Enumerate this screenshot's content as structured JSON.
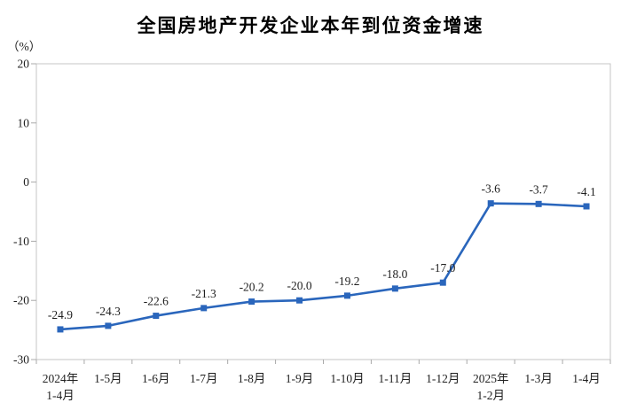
{
  "chart_data": {
    "type": "line",
    "title": "全国房地产开发企业本年到位资金增速",
    "unit_label": "（%）",
    "categories": [
      [
        "2024年",
        "1-4月"
      ],
      [
        "1-5月"
      ],
      [
        "1-6月"
      ],
      [
        "1-7月"
      ],
      [
        "1-8月"
      ],
      [
        "1-9月"
      ],
      [
        "1-10月"
      ],
      [
        "1-11月"
      ],
      [
        "1-12月"
      ],
      [
        "2025年",
        "1-2月"
      ],
      [
        "1-3月"
      ],
      [
        "1-4月"
      ]
    ],
    "values": [
      -24.9,
      -24.3,
      -22.6,
      -21.3,
      -20.2,
      -20.0,
      -19.2,
      -18.0,
      -17.0,
      -3.6,
      -3.7,
      -4.1
    ],
    "value_labels": [
      "-24.9",
      "-24.3",
      "-22.6",
      "-21.3",
      "-20.2",
      "-20.0",
      "-19.2",
      "-18.0",
      "-17.0",
      "-3.6",
      "-3.7",
      "-4.1"
    ],
    "ylim": [
      -30,
      20
    ],
    "yticks": [
      20,
      10,
      0,
      -10,
      -20,
      -30
    ],
    "xlabel": "",
    "ylabel": "（%）",
    "grid": false,
    "legend": null,
    "marker_shape": "square",
    "colors": {
      "line": "#2A66BC",
      "marker": "#2A66BC",
      "axis_border": "#C6C6C6",
      "tick": "#A9A9A9",
      "text": "#1F1F1F",
      "title": "#000000",
      "background": "#FFFFFF"
    }
  }
}
